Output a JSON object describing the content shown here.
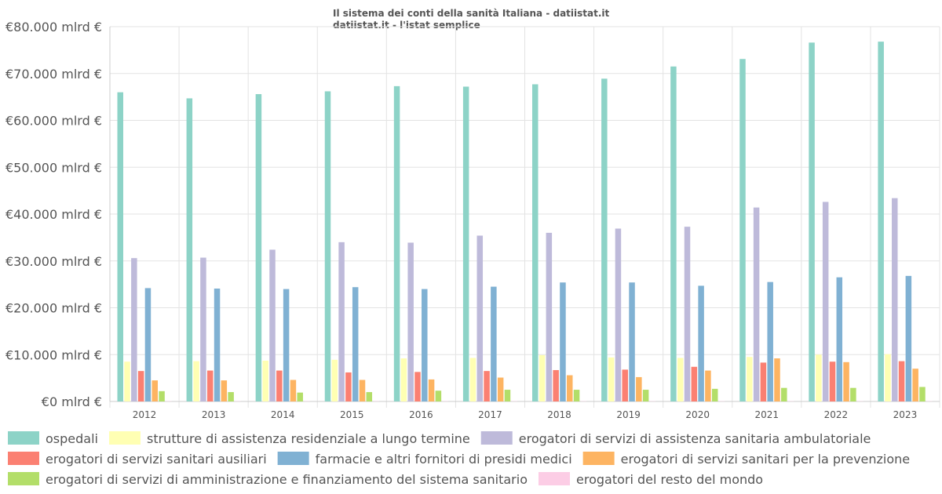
{
  "title_line1": "Il sistema dei conti della sanità Italiana - datiistat.it",
  "title_line2": "datiistat.it - l'istat semplice",
  "chart_data": {
    "type": "bar",
    "title": "Il sistema dei conti della sanità Italiana - datiistat.it",
    "subtitle": "datiistat.it - l'istat semplice",
    "categories": [
      "2012",
      "2013",
      "2014",
      "2015",
      "2016",
      "2017",
      "2018",
      "2019",
      "2020",
      "2021",
      "2022",
      "2023"
    ],
    "ylim": [
      0,
      80000
    ],
    "yticks": [
      {
        "value": 0,
        "label": "€0 mlrd €"
      },
      {
        "value": 10000,
        "label": "€10.000 mlrd €"
      },
      {
        "value": 20000,
        "label": "€20.000 mlrd €"
      },
      {
        "value": 30000,
        "label": "€30.000 mlrd €"
      },
      {
        "value": 40000,
        "label": "€40.000 mlrd €"
      },
      {
        "value": 50000,
        "label": "€50.000 mlrd €"
      },
      {
        "value": 60000,
        "label": "€60.000 mlrd €"
      },
      {
        "value": 70000,
        "label": "€70.000 mlrd €"
      },
      {
        "value": 80000,
        "label": "€80.000 mlrd €"
      }
    ],
    "grid": true,
    "legend_position": "bottom",
    "series": [
      {
        "name": "ospedali",
        "color": "#8dd3c7",
        "values": [
          66000,
          64700,
          65600,
          66200,
          67300,
          67200,
          67700,
          68900,
          71500,
          73100,
          76600,
          76800
        ]
      },
      {
        "name": "strutture di assistenza residenziale a lungo termine",
        "color": "#ffffb3",
        "values": [
          8500,
          8600,
          8700,
          8900,
          9200,
          9300,
          9900,
          9400,
          9300,
          9500,
          10000,
          10100
        ]
      },
      {
        "name": "erogatori di servizi di assistenza sanitaria ambulatoriale",
        "color": "#bebada",
        "values": [
          30600,
          30700,
          32400,
          34000,
          33900,
          35400,
          36000,
          36900,
          37300,
          41400,
          42600,
          43400
        ]
      },
      {
        "name": "erogatori di servizi sanitari ausiliari",
        "color": "#fb8072",
        "values": [
          6500,
          6600,
          6600,
          6200,
          6300,
          6500,
          6700,
          6800,
          7400,
          8300,
          8500,
          8600
        ]
      },
      {
        "name": "farmacie e altri fornitori di presidi medici",
        "color": "#80b1d3",
        "values": [
          24200,
          24100,
          24000,
          24400,
          24000,
          24500,
          25400,
          25400,
          24700,
          25500,
          26500,
          26800
        ]
      },
      {
        "name": "erogatori di servizi sanitari per la prevenzione",
        "color": "#fdb462",
        "values": [
          4500,
          4500,
          4600,
          4600,
          4700,
          5100,
          5600,
          5200,
          6600,
          9200,
          8400,
          7000
        ]
      },
      {
        "name": "erogatori di servizi di amministrazione e finanziamento del sistema sanitario",
        "color": "#b3de69",
        "values": [
          2200,
          2000,
          1900,
          2000,
          2300,
          2500,
          2500,
          2500,
          2700,
          2900,
          2900,
          3100
        ]
      },
      {
        "name": "erogatori del resto del mondo",
        "color": "#fccde5",
        "values": [
          50,
          50,
          50,
          50,
          50,
          50,
          50,
          50,
          50,
          50,
          50,
          50
        ]
      }
    ]
  }
}
